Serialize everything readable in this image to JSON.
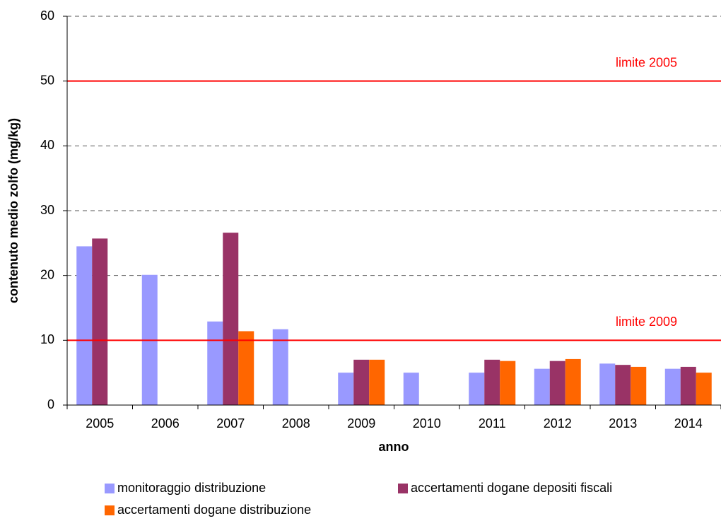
{
  "chart_data": {
    "type": "bar",
    "categories": [
      "2005",
      "2006",
      "2007",
      "2008",
      "2009",
      "2010",
      "2011",
      "2012",
      "2013",
      "2014"
    ],
    "series": [
      {
        "name": "monitoraggio distribuzione",
        "color": "#9999ff",
        "values": [
          24.5,
          20.1,
          12.9,
          11.7,
          5.0,
          5.0,
          5.0,
          5.6,
          6.4,
          5.6
        ]
      },
      {
        "name": "accertamenti dogane depositi fiscali",
        "color": "#993366",
        "values": [
          25.7,
          null,
          26.6,
          null,
          7.0,
          null,
          7.0,
          6.8,
          6.2,
          5.9
        ]
      },
      {
        "name": "accertamenti dogane distribuzione",
        "color": "#ff6600",
        "values": [
          null,
          null,
          11.4,
          null,
          7.0,
          null,
          6.8,
          7.1,
          5.9,
          5.0
        ]
      }
    ],
    "xlabel": "anno",
    "ylabel": "contenuto medio zolfo (mg/kg)",
    "ylim": [
      0,
      60
    ],
    "yticks": [
      0,
      10,
      20,
      30,
      40,
      50,
      60
    ],
    "grid": true,
    "reference_lines": [
      {
        "value": 50,
        "label": "limite 2005",
        "color": "#ff0000"
      },
      {
        "value": 10,
        "label": "limite 2009",
        "color": "#ff0000"
      }
    ],
    "legend": "bottom"
  }
}
